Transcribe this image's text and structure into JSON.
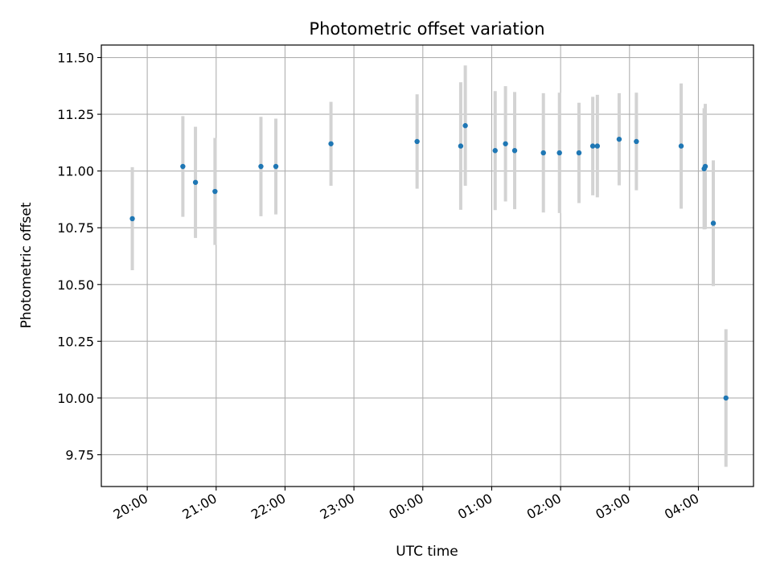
{
  "chart_data": {
    "type": "scatter",
    "title": "Photometric offset variation",
    "xlabel": "UTC time",
    "ylabel": "Photometric offset",
    "x_ticks": [
      "20:00",
      "21:00",
      "22:00",
      "23:00",
      "00:00",
      "01:00",
      "02:00",
      "03:00",
      "04:00"
    ],
    "y_ticks": [
      "9.75",
      "10.00",
      "10.25",
      "10.50",
      "10.75",
      "11.00",
      "11.25",
      "11.50"
    ],
    "xlim": [
      "19:20",
      "04:48"
    ],
    "ylim": [
      9.61,
      11.555
    ],
    "grid": true,
    "marker_color": "#1f77b4",
    "errorbar_color": "#d3d3d3",
    "points": [
      {
        "x": "19:47",
        "y": 10.79,
        "err": 0.227
      },
      {
        "x": "20:31",
        "y": 11.02,
        "err": 0.222
      },
      {
        "x": "20:42",
        "y": 10.95,
        "err": 0.245
      },
      {
        "x": "20:59",
        "y": 10.91,
        "err": 0.236
      },
      {
        "x": "21:39",
        "y": 11.02,
        "err": 0.219
      },
      {
        "x": "21:52",
        "y": 11.02,
        "err": 0.211
      },
      {
        "x": "22:40",
        "y": 11.12,
        "err": 0.185
      },
      {
        "x": "23:55",
        "y": 11.13,
        "err": 0.208
      },
      {
        "x": "00:33",
        "y": 11.11,
        "err": 0.281
      },
      {
        "x": "00:37",
        "y": 11.2,
        "err": 0.265
      },
      {
        "x": "01:03",
        "y": 11.09,
        "err": 0.262
      },
      {
        "x": "01:12",
        "y": 11.12,
        "err": 0.254
      },
      {
        "x": "01:20",
        "y": 11.09,
        "err": 0.258
      },
      {
        "x": "01:45",
        "y": 11.08,
        "err": 0.263
      },
      {
        "x": "01:59",
        "y": 11.08,
        "err": 0.265
      },
      {
        "x": "02:16",
        "y": 11.08,
        "err": 0.221
      },
      {
        "x": "02:28",
        "y": 11.11,
        "err": 0.217
      },
      {
        "x": "02:32",
        "y": 11.11,
        "err": 0.226
      },
      {
        "x": "02:51",
        "y": 11.14,
        "err": 0.203
      },
      {
        "x": "03:06",
        "y": 11.13,
        "err": 0.215
      },
      {
        "x": "03:45",
        "y": 11.11,
        "err": 0.276
      },
      {
        "x": "04:05",
        "y": 11.01,
        "err": 0.267
      },
      {
        "x": "04:06",
        "y": 11.02,
        "err": 0.276
      },
      {
        "x": "04:13",
        "y": 10.77,
        "err": 0.277
      },
      {
        "x": "04:24",
        "y": 10.0,
        "err": 0.303
      }
    ]
  }
}
